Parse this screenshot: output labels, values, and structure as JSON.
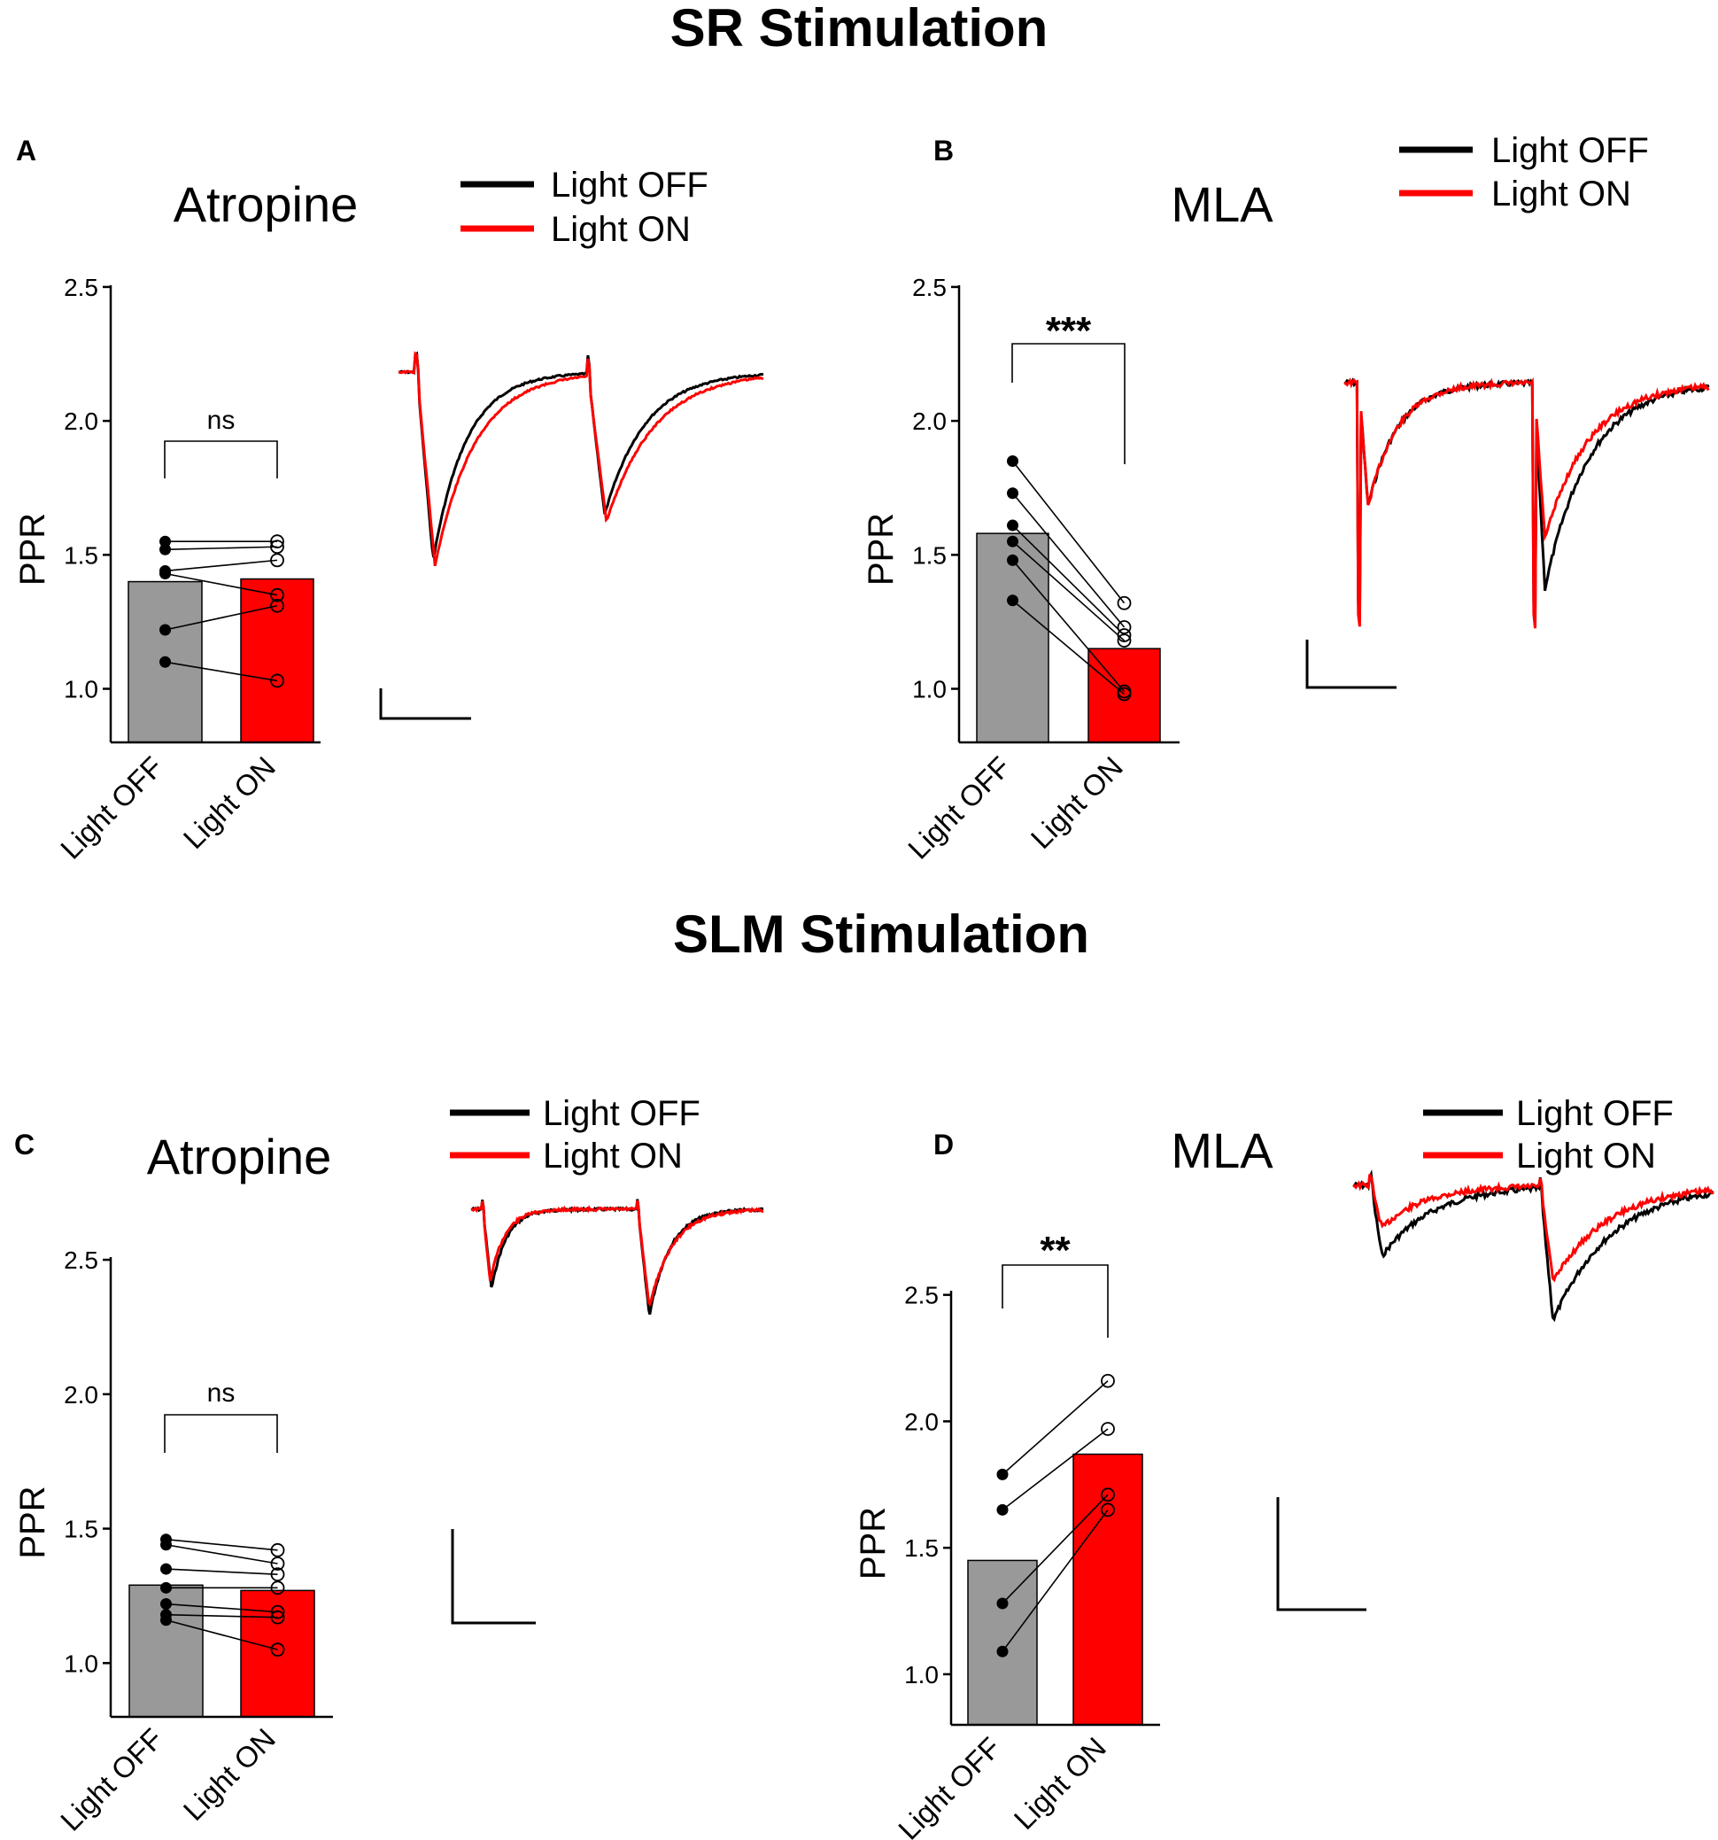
{
  "sections": [
    {
      "title": "SR Stimulation"
    },
    {
      "title": "SLM Stimulation"
    }
  ],
  "legend": {
    "off": "Light OFF",
    "on": "Light ON"
  },
  "colors": {
    "off_bar": "#999999",
    "on_bar": "#ff0000",
    "off_trace": "#000000",
    "on_trace": "#ff0000"
  },
  "chart_data": [
    {
      "type": "bar",
      "panel": "A",
      "section": "SR Stimulation",
      "title": "Atropine",
      "ylabel": "PPR",
      "ylim": [
        0.8,
        2.5
      ],
      "yticks": [
        "1.0",
        "1.5",
        "2.0",
        "2.5"
      ],
      "categories": [
        "Light OFF",
        "Light ON"
      ],
      "values": [
        1.4,
        1.41
      ],
      "paired_points": {
        "off": [
          1.55,
          1.52,
          1.44,
          1.43,
          1.22,
          1.1
        ],
        "on": [
          1.55,
          1.53,
          1.48,
          1.35,
          1.31,
          1.03
        ]
      },
      "significance": "ns"
    },
    {
      "type": "bar",
      "panel": "B",
      "section": "SR Stimulation",
      "title": "MLA",
      "ylabel": "PPR",
      "ylim": [
        0.8,
        2.5
      ],
      "yticks": [
        "1.0",
        "1.5",
        "2.0",
        "2.5"
      ],
      "categories": [
        "Light OFF",
        "Light ON"
      ],
      "values": [
        1.58,
        1.15
      ],
      "paired_points": {
        "off": [
          1.85,
          1.73,
          1.61,
          1.55,
          1.48,
          1.33
        ],
        "on": [
          1.32,
          1.23,
          1.2,
          1.18,
          0.99,
          0.98
        ]
      },
      "significance": "***"
    },
    {
      "type": "bar",
      "panel": "C",
      "section": "SLM Stimulation",
      "title": "Atropine",
      "ylabel": "PPR",
      "ylim": [
        0.8,
        2.5
      ],
      "yticks": [
        "1.0",
        "1.5",
        "2.0",
        "2.5"
      ],
      "categories": [
        "Light OFF",
        "Light ON"
      ],
      "values": [
        1.29,
        1.27
      ],
      "paired_points": {
        "off": [
          1.46,
          1.44,
          1.35,
          1.28,
          1.22,
          1.18,
          1.16
        ],
        "on": [
          1.42,
          1.37,
          1.33,
          1.28,
          1.19,
          1.17,
          1.05
        ]
      },
      "significance": "ns"
    },
    {
      "type": "bar",
      "panel": "D",
      "section": "SLM Stimulation",
      "title": "MLA",
      "ylabel": "PPR",
      "ylim": [
        0.8,
        2.5
      ],
      "yticks": [
        "1.0",
        "1.5",
        "2.0",
        "2.5"
      ],
      "categories": [
        "Light OFF",
        "Light ON"
      ],
      "values": [
        1.45,
        1.87
      ],
      "paired_points": {
        "off": [
          1.79,
          1.65,
          1.28,
          1.09
        ],
        "on": [
          2.16,
          1.97,
          1.71,
          1.65
        ]
      },
      "significance": "**"
    }
  ]
}
